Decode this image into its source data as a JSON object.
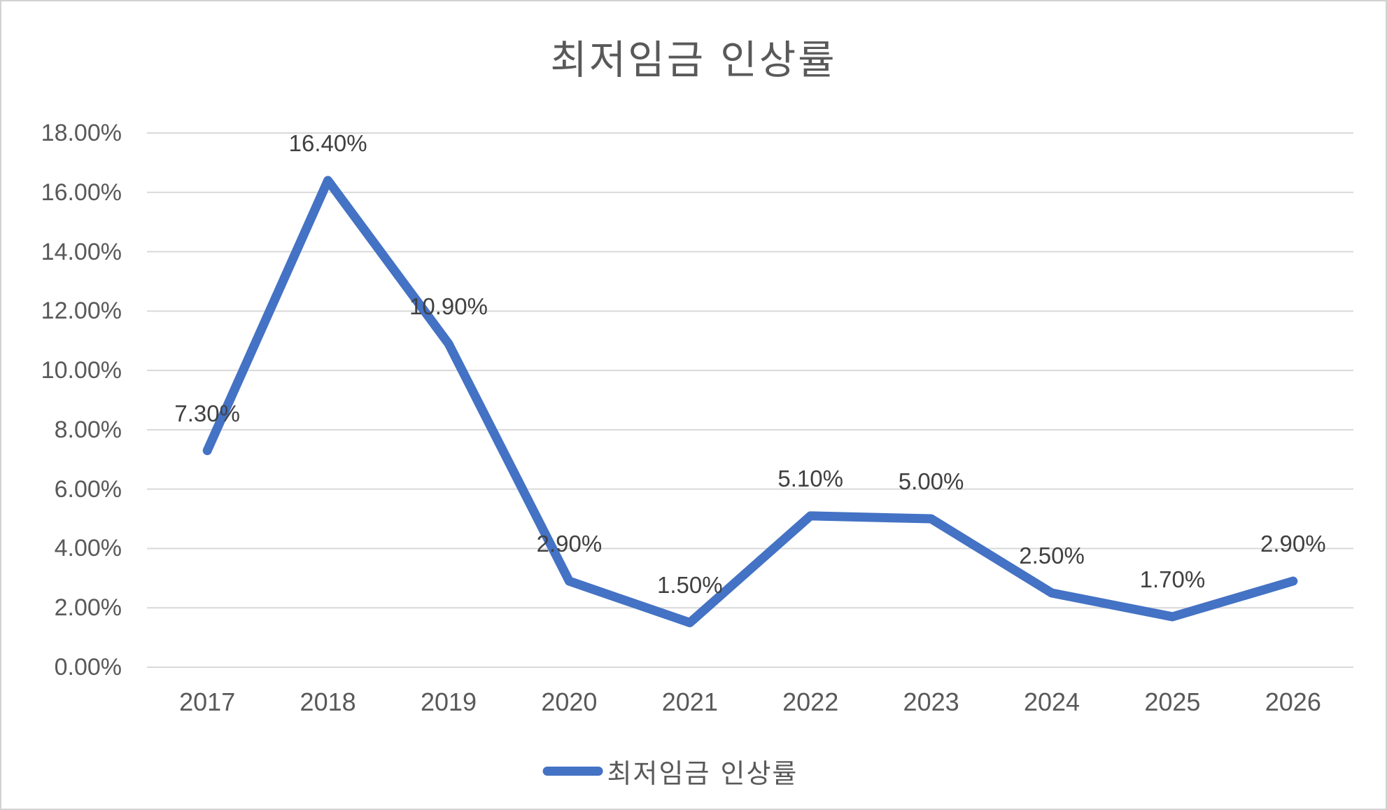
{
  "chart_data": {
    "type": "line",
    "title": "최저임금 인상률",
    "categories": [
      "2017",
      "2018",
      "2019",
      "2020",
      "2021",
      "2022",
      "2023",
      "2024",
      "2025",
      "2026"
    ],
    "series": [
      {
        "name": "최저임금 인상률",
        "values": [
          7.3,
          16.4,
          10.9,
          2.9,
          1.5,
          5.1,
          5.0,
          2.5,
          1.7,
          2.9
        ],
        "labels": [
          "7.30%",
          "16.40%",
          "10.90%",
          "2.90%",
          "1.50%",
          "5.10%",
          "5.00%",
          "2.50%",
          "1.70%",
          "2.90%"
        ],
        "color": "#4472C4"
      }
    ],
    "xlabel": "",
    "ylabel": "",
    "y_axis": {
      "min": 0,
      "max": 18,
      "step": 2,
      "tick_labels": [
        "18.00%",
        "16.00%",
        "14.00%",
        "12.00%",
        "10.00%",
        "8.00%",
        "6.00%",
        "4.00%",
        "2.00%",
        "0.00%"
      ]
    },
    "grid": true,
    "legend_position": "bottom"
  },
  "colors": {
    "line": "#4472C4",
    "gridline": "#D9D9D9",
    "axis_text": "#595959",
    "data_label_text": "#404040",
    "title_text": "#595959",
    "border": "#D2D2D2",
    "background": "#FFFFFF"
  }
}
